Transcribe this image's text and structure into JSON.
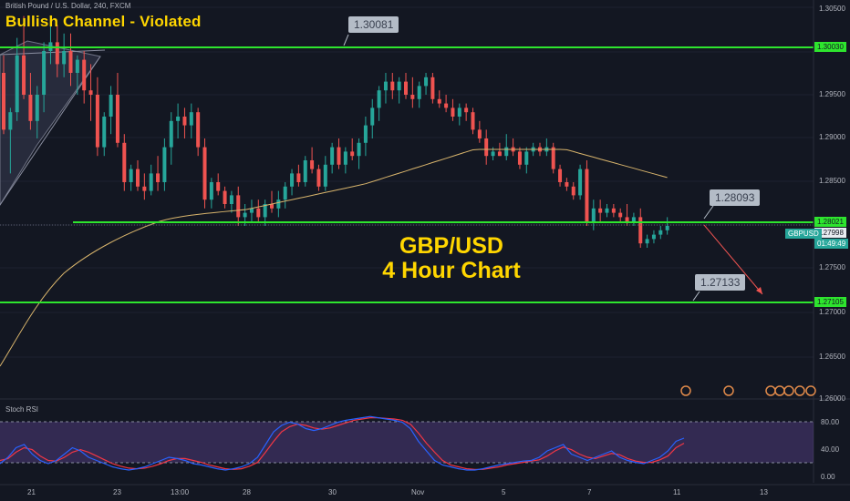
{
  "header": {
    "symbol_line": "British Pound / U.S. Dollar, 240, FXCM",
    "title": "Bullish Channel - Violated"
  },
  "overlay": {
    "line1": "GBP/USD",
    "line2": "4 Hour Chart"
  },
  "callouts": {
    "top": "1.30081",
    "mid": "1.28093",
    "low": "1.27133"
  },
  "price_axis": {
    "ticks": [
      "1.30500",
      "1.29500",
      "1.29000",
      "1.28500",
      "1.27500",
      "1.27000",
      "1.26500",
      "1.26000"
    ],
    "tag_top": "1.30030",
    "tag_mid": "1.28021",
    "tag_current": "1.27998",
    "tag_symbol": "GBPUSD",
    "tag_timer": "01:49:49",
    "tag_low": "1.27105"
  },
  "time_axis": {
    "labels": [
      "21",
      "23",
      "13:00",
      "28",
      "30",
      "Nov",
      "5",
      "7",
      "11",
      "13"
    ]
  },
  "rsi": {
    "title": "Stoch RSI",
    "ticks": [
      "80.00",
      "40.00",
      "0.00"
    ]
  },
  "colors": {
    "background": "#131722",
    "bull": "#26a69a",
    "bear": "#ef5350",
    "level_line": "#2ee52e",
    "ma": "#d8b46c",
    "title": "#ffd600",
    "rsi_k": "#2962ff",
    "rsi_d": "#f23645",
    "rsi_band": "#7e57c2"
  },
  "chart_data": {
    "type": "candlestick",
    "symbol": "British Pound / U.S. Dollar",
    "timeframe": "240",
    "levels": [
      1.30081,
      1.28093,
      1.27133
    ],
    "candles_ohlc": [
      [
        1.2975,
        1.2995,
        1.2905,
        1.291
      ],
      [
        1.291,
        1.2935,
        1.286,
        1.293
      ],
      [
        1.293,
        1.3015,
        1.292,
        1.2995
      ],
      [
        1.2995,
        1.304,
        1.2945,
        1.295
      ],
      [
        1.295,
        1.2975,
        1.291,
        1.292
      ],
      [
        1.292,
        1.296,
        1.29,
        1.295
      ],
      [
        1.295,
        1.301,
        1.293,
        1.3
      ],
      [
        1.3,
        1.3035,
        1.2985,
        1.301
      ],
      [
        1.301,
        1.303,
        1.297,
        1.2985
      ],
      [
        1.2985,
        1.302,
        1.297,
        1.3
      ],
      [
        1.3,
        1.302,
        1.296,
        1.2975
      ],
      [
        1.2975,
        1.2995,
        1.295,
        1.299
      ],
      [
        1.299,
        1.3,
        1.294,
        1.2955
      ],
      [
        1.2955,
        1.2985,
        1.292,
        1.295
      ],
      [
        1.295,
        1.297,
        1.288,
        1.289
      ],
      [
        1.289,
        1.293,
        1.288,
        1.2925
      ],
      [
        1.2925,
        1.296,
        1.2905,
        1.295
      ],
      [
        1.295,
        1.2975,
        1.289,
        1.2895
      ],
      [
        1.2895,
        1.2905,
        1.284,
        1.285
      ],
      [
        1.285,
        1.287,
        1.284,
        1.2865
      ],
      [
        1.2865,
        1.2875,
        1.284,
        1.2845
      ],
      [
        1.2845,
        1.286,
        1.283,
        1.284
      ],
      [
        1.284,
        1.287,
        1.2835,
        1.286
      ],
      [
        1.286,
        1.288,
        1.284,
        1.285
      ],
      [
        1.285,
        1.29,
        1.284,
        1.289
      ],
      [
        1.289,
        1.293,
        1.287,
        1.292
      ],
      [
        1.292,
        1.294,
        1.29,
        1.2925
      ],
      [
        1.2925,
        1.2935,
        1.29,
        1.2915
      ],
      [
        1.2915,
        1.294,
        1.29,
        1.293
      ],
      [
        1.293,
        1.2935,
        1.288,
        1.289
      ],
      [
        1.289,
        1.29,
        1.282,
        1.283
      ],
      [
        1.283,
        1.2855,
        1.282,
        1.285
      ],
      [
        1.285,
        1.286,
        1.2835,
        1.284
      ],
      [
        1.284,
        1.2845,
        1.282,
        1.2825
      ],
      [
        1.2825,
        1.284,
        1.2815,
        1.2835
      ],
      [
        1.2835,
        1.2845,
        1.28,
        1.281
      ],
      [
        1.281,
        1.2825,
        1.28,
        1.2815
      ],
      [
        1.2815,
        1.283,
        1.2805,
        1.282
      ],
      [
        1.282,
        1.283,
        1.2805,
        1.281
      ],
      [
        1.281,
        1.283,
        1.28,
        1.2825
      ],
      [
        1.2825,
        1.284,
        1.2815,
        1.282
      ],
      [
        1.282,
        1.284,
        1.281,
        1.283
      ],
      [
        1.283,
        1.285,
        1.282,
        1.2845
      ],
      [
        1.2845,
        1.2865,
        1.2835,
        1.286
      ],
      [
        1.286,
        1.287,
        1.2845,
        1.285
      ],
      [
        1.285,
        1.288,
        1.2845,
        1.2875
      ],
      [
        1.2875,
        1.289,
        1.286,
        1.2865
      ],
      [
        1.2865,
        1.287,
        1.284,
        1.2845
      ],
      [
        1.2845,
        1.288,
        1.284,
        1.287
      ],
      [
        1.287,
        1.2895,
        1.286,
        1.289
      ],
      [
        1.289,
        1.29,
        1.2865,
        1.287
      ],
      [
        1.287,
        1.289,
        1.286,
        1.2885
      ],
      [
        1.2885,
        1.29,
        1.2875,
        1.288
      ],
      [
        1.288,
        1.29,
        1.2865,
        1.2895
      ],
      [
        1.2895,
        1.2925,
        1.288,
        1.2915
      ],
      [
        1.2915,
        1.2945,
        1.29,
        1.2935
      ],
      [
        1.2935,
        1.296,
        1.292,
        1.2955
      ],
      [
        1.2955,
        1.2975,
        1.294,
        1.2965
      ],
      [
        1.2965,
        1.2975,
        1.2945,
        1.2955
      ],
      [
        1.2955,
        1.297,
        1.294,
        1.2965
      ],
      [
        1.2965,
        1.2975,
        1.2945,
        1.295
      ],
      [
        1.295,
        1.297,
        1.2935,
        1.2945
      ],
      [
        1.2945,
        1.2965,
        1.2935,
        1.296
      ],
      [
        1.296,
        1.2975,
        1.295,
        1.297
      ],
      [
        1.297,
        1.2975,
        1.294,
        1.2945
      ],
      [
        1.2945,
        1.2955,
        1.2935,
        1.294
      ],
      [
        1.294,
        1.295,
        1.293,
        1.2935
      ],
      [
        1.2935,
        1.2945,
        1.292,
        1.2925
      ],
      [
        1.2925,
        1.294,
        1.2915,
        1.2935
      ],
      [
        1.2935,
        1.294,
        1.292,
        1.293
      ],
      [
        1.293,
        1.2935,
        1.2905,
        1.291
      ],
      [
        1.291,
        1.292,
        1.2895,
        1.29
      ],
      [
        1.29,
        1.291,
        1.287,
        1.288
      ],
      [
        1.288,
        1.289,
        1.2875,
        1.2885
      ],
      [
        1.2885,
        1.2895,
        1.288,
        1.288
      ],
      [
        1.288,
        1.2905,
        1.2875,
        1.289
      ],
      [
        1.289,
        1.29,
        1.288,
        1.2885
      ],
      [
        1.2885,
        1.289,
        1.2865,
        1.287
      ],
      [
        1.287,
        1.289,
        1.286,
        1.2885
      ],
      [
        1.2885,
        1.2895,
        1.288,
        1.289
      ],
      [
        1.289,
        1.2895,
        1.288,
        1.2885
      ],
      [
        1.2885,
        1.29,
        1.288,
        1.289
      ],
      [
        1.289,
        1.2895,
        1.286,
        1.2865
      ],
      [
        1.2865,
        1.287,
        1.2845,
        1.285
      ],
      [
        1.285,
        1.2855,
        1.284,
        1.2845
      ],
      [
        1.2845,
        1.285,
        1.283,
        1.2835
      ],
      [
        1.2835,
        1.287,
        1.283,
        1.2865
      ],
      [
        1.2865,
        1.2875,
        1.28,
        1.2805
      ],
      [
        1.2805,
        1.283,
        1.2795,
        1.282
      ],
      [
        1.282,
        1.283,
        1.2805,
        1.2815
      ],
      [
        1.2815,
        1.2825,
        1.281,
        1.282
      ],
      [
        1.282,
        1.2825,
        1.281,
        1.2815
      ],
      [
        1.2815,
        1.282,
        1.2805,
        1.281
      ],
      [
        1.281,
        1.2825,
        1.28,
        1.2805
      ],
      [
        1.2805,
        1.2815,
        1.28,
        1.281
      ],
      [
        1.281,
        1.282,
        1.2775,
        1.278
      ],
      [
        1.278,
        1.279,
        1.2775,
        1.2785
      ],
      [
        1.2785,
        1.2795,
        1.278,
        1.279
      ],
      [
        1.279,
        1.28,
        1.2785,
        1.2795
      ],
      [
        1.2795,
        1.281,
        1.279,
        1.28
      ]
    ],
    "stoch_rsi_k": [
      20,
      30,
      45,
      50,
      35,
      25,
      20,
      25,
      35,
      45,
      40,
      30,
      25,
      20,
      15,
      12,
      10,
      12,
      15,
      20,
      25,
      30,
      28,
      25,
      20,
      18,
      15,
      12,
      10,
      12,
      15,
      20,
      30,
      50,
      70,
      80,
      85,
      82,
      75,
      72,
      75,
      80,
      85,
      88,
      90,
      92,
      94,
      92,
      90,
      88,
      85,
      75,
      55,
      40,
      25,
      18,
      15,
      12,
      10,
      10,
      12,
      15,
      18,
      20,
      22,
      24,
      25,
      30,
      40,
      45,
      50,
      35,
      30,
      25,
      30,
      35,
      40,
      30,
      25,
      22,
      20,
      25,
      30,
      40,
      55,
      60
    ],
    "stoch_rsi_d": [
      25,
      28,
      38,
      45,
      42,
      32,
      25,
      24,
      30,
      38,
      42,
      38,
      32,
      26,
      20,
      16,
      13,
      12,
      13,
      16,
      20,
      25,
      28,
      28,
      25,
      22,
      18,
      15,
      12,
      11,
      12,
      16,
      22,
      38,
      55,
      70,
      78,
      82,
      80,
      76,
      74,
      76,
      80,
      84,
      88,
      90,
      92,
      92,
      91,
      90,
      88,
      82,
      68,
      52,
      38,
      25,
      18,
      15,
      12,
      11,
      11,
      13,
      15,
      18,
      20,
      22,
      24,
      26,
      32,
      40,
      46,
      42,
      35,
      30,
      28,
      32,
      36,
      34,
      28,
      24,
      22,
      22,
      26,
      32,
      45,
      52
    ]
  }
}
